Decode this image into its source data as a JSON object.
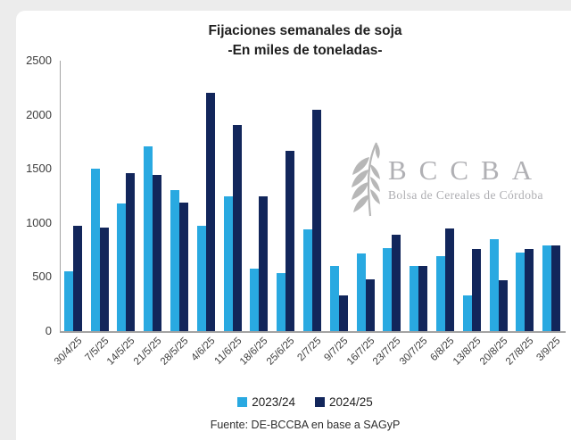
{
  "title": "Fijaciones semanales de soja",
  "subtitle": "-En miles de toneladas-",
  "source": "Fuente: DE-BCCBA en base a SAGyP",
  "watermark": {
    "acronym": "BCCBA",
    "tagline": "Bolsa de Cereales de Córdoba"
  },
  "colors": {
    "series_2023_24": "#29a9e1",
    "series_2024_25": "#12265b",
    "axis": "#a3a3a3",
    "watermark_gray": "#b0b0b4"
  },
  "chart_data": {
    "type": "bar",
    "title": "Fijaciones semanales de soja",
    "subtitle": "-En miles de toneladas-",
    "categories": [
      "30/4/25",
      "7/5/25",
      "14/5/25",
      "21/5/25",
      "28/5/25",
      "4/6/25",
      "11/6/25",
      "18/6/25",
      "25/6/25",
      "2/7/25",
      "9/7/25",
      "16/7/25",
      "23/7/25",
      "30/7/25",
      "6/8/25",
      "13/8/25",
      "20/8/25",
      "27/8/25",
      "3/9/25"
    ],
    "series": [
      {
        "name": "2023/24",
        "color": "#29a9e1",
        "values": [
          550,
          1500,
          1180,
          1710,
          1300,
          970,
          1250,
          580,
          540,
          940,
          600,
          720,
          770,
          600,
          690,
          330,
          850,
          730,
          790
        ]
      },
      {
        "name": "2024/25",
        "color": "#12265b",
        "values": [
          970,
          960,
          1460,
          1440,
          1190,
          2200,
          1910,
          1250,
          1670,
          2050,
          330,
          480,
          890,
          600,
          950,
          760,
          470,
          760,
          790
        ]
      }
    ],
    "xlabel": "",
    "ylabel": "",
    "ylim": [
      0,
      2500
    ],
    "yticks": [
      0,
      500,
      1000,
      1500,
      2000,
      2500
    ],
    "grid": false,
    "legend_position": "bottom"
  }
}
